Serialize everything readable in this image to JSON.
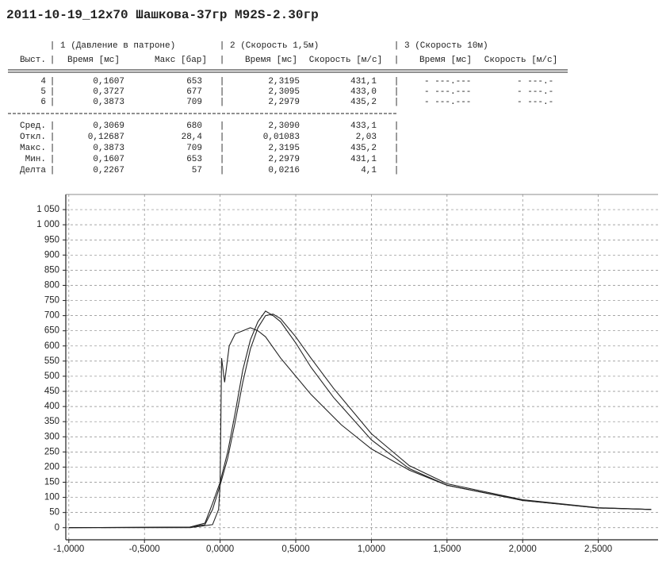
{
  "header": {
    "title": "2011-10-19_12x70 Шашкова-37гр M92S-2.30гр"
  },
  "table": {
    "groups": [
      "1 (Давление в патроне)",
      "2 (Скорость 1,5м)",
      "3 (Скорость 10м)"
    ],
    "columns": [
      "Выст.",
      "Время [мс]",
      "Макс [бар]",
      "Время [мс]",
      "Скорость [м/с]",
      "Время [мс]",
      "Скорость [м/с]"
    ],
    "rows": [
      {
        "label": "4",
        "cells": [
          "0,1607",
          "653",
          "2,3195",
          "431,1",
          "- ---.---",
          "- ---.-"
        ]
      },
      {
        "label": "5",
        "cells": [
          "0,3727",
          "677",
          "2,3095",
          "433,0",
          "- ---.---",
          "- ---.-"
        ]
      },
      {
        "label": "6",
        "cells": [
          "0,3873",
          "709",
          "2,2979",
          "435,2",
          "- ---.---",
          "- ---.-"
        ]
      }
    ],
    "stats": [
      {
        "label": "Сред.",
        "cells": [
          "0,3069",
          "680",
          "2,3090",
          "433,1"
        ]
      },
      {
        "label": "Откл.",
        "cells": [
          "0,12687",
          "28,4",
          "0,01083",
          "2,03"
        ]
      },
      {
        "label": "Макс.",
        "cells": [
          "0,3873",
          "709",
          "2,3195",
          "435,2"
        ]
      },
      {
        "label": "Мин.",
        "cells": [
          "0,1607",
          "653",
          "2,2979",
          "431,1"
        ]
      },
      {
        "label": "Делта",
        "cells": [
          "0,2267",
          "57",
          "0,0216",
          "4,1"
        ]
      }
    ]
  },
  "chart_data": {
    "type": "line",
    "xlim": [
      -1.02,
      2.895
    ],
    "ylim": [
      -40,
      1100
    ],
    "grid": true,
    "xticks": [
      {
        "value": -1,
        "label": "-1,0000"
      },
      {
        "value": -0.5,
        "label": "-0,5000"
      },
      {
        "value": 0,
        "label": "0,0000"
      },
      {
        "value": 0.5,
        "label": "0,5000"
      },
      {
        "value": 1,
        "label": "1,0000"
      },
      {
        "value": 1.5,
        "label": "1,5000"
      },
      {
        "value": 2,
        "label": "2,0000"
      },
      {
        "value": 2.5,
        "label": "2,5000"
      }
    ],
    "yticks": [
      0,
      50,
      100,
      150,
      200,
      250,
      300,
      350,
      400,
      450,
      500,
      550,
      600,
      650,
      700,
      750,
      800,
      850,
      900,
      950,
      {
        "value": 1000,
        "label": "1 000"
      },
      {
        "value": 1050,
        "label": "1 050"
      }
    ],
    "series": [
      {
        "color": "#222222",
        "x": [
          -1.0,
          -0.2,
          -0.05,
          -0.01,
          0.0,
          0.01,
          0.03,
          0.06,
          0.1,
          0.15,
          0.2,
          0.25,
          0.3,
          0.4,
          0.5,
          0.6,
          0.8,
          1.0,
          1.25,
          1.5,
          2.0,
          2.5,
          2.85
        ],
        "values": [
          0,
          0,
          10,
          60,
          140,
          560,
          480,
          600,
          640,
          650,
          660,
          650,
          630,
          560,
          500,
          440,
          340,
          260,
          190,
          140,
          90,
          65,
          60
        ]
      },
      {
        "color": "#222222",
        "x": [
          -1.0,
          -0.2,
          -0.1,
          -0.05,
          0.0,
          0.05,
          0.1,
          0.15,
          0.2,
          0.25,
          0.3,
          0.35,
          0.4,
          0.5,
          0.6,
          0.75,
          1.0,
          1.25,
          1.5,
          2.0,
          2.5,
          2.85
        ],
        "values": [
          0,
          2,
          15,
          80,
          150,
          250,
          380,
          520,
          620,
          680,
          715,
          700,
          680,
          610,
          530,
          430,
          290,
          195,
          140,
          90,
          65,
          60
        ]
      },
      {
        "color": "#222222",
        "x": [
          -1.0,
          -0.2,
          -0.1,
          -0.05,
          0.0,
          0.05,
          0.1,
          0.15,
          0.2,
          0.25,
          0.3,
          0.35,
          0.4,
          0.5,
          0.6,
          0.75,
          1.0,
          1.25,
          1.5,
          2.0,
          2.5,
          2.85
        ],
        "values": [
          0,
          2,
          10,
          60,
          140,
          230,
          350,
          480,
          590,
          660,
          700,
          705,
          690,
          630,
          560,
          460,
          310,
          205,
          145,
          92,
          66,
          60
        ]
      }
    ]
  }
}
